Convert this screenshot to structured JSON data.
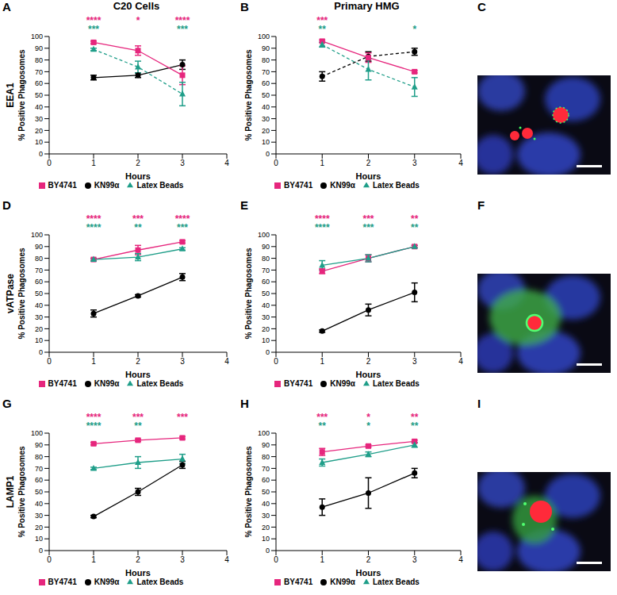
{
  "chart_data": [
    {
      "panel": "A",
      "type": "line",
      "title": "C20 Cells",
      "row_label": "EEA1",
      "ylabel": "% Positive Phagosomes",
      "xlabel": "Hours",
      "x": [
        1,
        2,
        3
      ],
      "xlim": [
        0,
        4
      ],
      "xticks": [
        0,
        1,
        2,
        3,
        4
      ],
      "ylim": [
        0,
        100
      ],
      "yticks": [
        0,
        10,
        20,
        30,
        40,
        50,
        60,
        70,
        80,
        90,
        100
      ],
      "grid": false,
      "legend": "bottom",
      "series": [
        {
          "name": "KN99α",
          "color": "#000000",
          "marker": "circle",
          "line_style": "solid",
          "values": [
            65,
            67,
            76
          ],
          "errors": [
            2,
            2,
            4
          ]
        },
        {
          "name": "BY4741",
          "color": "#e6267d",
          "marker": "square",
          "line_style": "solid",
          "values": [
            95,
            88,
            67
          ],
          "errors": [
            1,
            4,
            8
          ],
          "stars": [
            "****",
            "*",
            "****"
          ]
        },
        {
          "name": "Latex Beads",
          "color": "#1f9e89",
          "marker": "triangle",
          "line_style": "dashed",
          "values": [
            89,
            74,
            51
          ],
          "errors": [
            1,
            5,
            10
          ],
          "stars": [
            "***",
            null,
            "***"
          ]
        }
      ]
    },
    {
      "panel": "B",
      "type": "line",
      "title": "Primary HMG",
      "ylabel": "% Positive Phagosomes",
      "xlabel": "Hours",
      "x": [
        1,
        2,
        3
      ],
      "xlim": [
        0,
        4
      ],
      "xticks": [
        0,
        1,
        2,
        3,
        4
      ],
      "ylim": [
        0,
        100
      ],
      "yticks": [
        0,
        10,
        20,
        30,
        40,
        50,
        60,
        70,
        80,
        90,
        100
      ],
      "grid": false,
      "legend": "bottom",
      "series": [
        {
          "name": "KN99α",
          "color": "#000000",
          "marker": "circle",
          "line_style": "dashed",
          "values": [
            66,
            83,
            87
          ],
          "errors": [
            4,
            4,
            3
          ]
        },
        {
          "name": "BY4741",
          "color": "#e6267d",
          "marker": "square",
          "line_style": "solid",
          "values": [
            96,
            82,
            70
          ],
          "errors": [
            1,
            4,
            1
          ],
          "stars": [
            "***",
            null,
            null
          ]
        },
        {
          "name": "Latex Beads",
          "color": "#1f9e89",
          "marker": "triangle",
          "line_style": "dashed",
          "values": [
            93,
            72,
            57
          ],
          "errors": [
            2,
            9,
            8
          ],
          "stars": [
            "**",
            null,
            "*"
          ]
        }
      ]
    },
    {
      "panel": "D",
      "type": "line",
      "row_label": "vATPase",
      "ylabel": "% Positive Phagosomes",
      "xlabel": "Hours",
      "x": [
        1,
        2,
        3
      ],
      "xlim": [
        0,
        4
      ],
      "xticks": [
        0,
        1,
        2,
        3,
        4
      ],
      "ylim": [
        0,
        100
      ],
      "yticks": [
        0,
        10,
        20,
        30,
        40,
        50,
        60,
        70,
        80,
        90,
        100
      ],
      "grid": false,
      "legend": "bottom",
      "series": [
        {
          "name": "KN99α",
          "color": "#000000",
          "marker": "circle",
          "line_style": "solid",
          "values": [
            33,
            48,
            64
          ],
          "errors": [
            3,
            1,
            3
          ]
        },
        {
          "name": "BY4741",
          "color": "#e6267d",
          "marker": "square",
          "line_style": "solid",
          "values": [
            79,
            87,
            94
          ],
          "errors": [
            1,
            4,
            1
          ],
          "stars": [
            "****",
            "***",
            "****"
          ]
        },
        {
          "name": "Latex Beads",
          "color": "#1f9e89",
          "marker": "triangle",
          "line_style": "solid",
          "values": [
            79,
            81,
            88
          ],
          "errors": [
            1,
            3,
            1
          ],
          "stars": [
            "****",
            "**",
            "***"
          ]
        }
      ]
    },
    {
      "panel": "E",
      "type": "line",
      "ylabel": "% Positive Phagosomes",
      "xlabel": "Hours",
      "x": [
        1,
        2,
        3
      ],
      "xlim": [
        0,
        4
      ],
      "xticks": [
        0,
        1,
        2,
        3,
        4
      ],
      "ylim": [
        0,
        100
      ],
      "yticks": [
        0,
        10,
        20,
        30,
        40,
        50,
        60,
        70,
        80,
        90,
        100
      ],
      "grid": false,
      "legend": "bottom",
      "series": [
        {
          "name": "KN99α",
          "color": "#000000",
          "marker": "circle",
          "line_style": "solid",
          "values": [
            18,
            36,
            51
          ],
          "errors": [
            1,
            5,
            8
          ]
        },
        {
          "name": "BY4741",
          "color": "#e6267d",
          "marker": "square",
          "line_style": "solid",
          "values": [
            69,
            80,
            90
          ],
          "errors": [
            2,
            3,
            1
          ],
          "stars": [
            "****",
            "***",
            "**"
          ]
        },
        {
          "name": "Latex Beads",
          "color": "#1f9e89",
          "marker": "triangle",
          "line_style": "solid",
          "values": [
            74,
            80,
            90
          ],
          "errors": [
            4,
            3,
            1
          ],
          "stars": [
            "****",
            "***",
            "**"
          ]
        }
      ]
    },
    {
      "panel": "G",
      "type": "line",
      "row_label": "LAMP1",
      "ylabel": "% Positive Phagosomes",
      "xlabel": "Hours",
      "x": [
        1,
        2,
        3
      ],
      "xlim": [
        0,
        4
      ],
      "xticks": [
        0,
        1,
        2,
        3,
        4
      ],
      "ylim": [
        0,
        100
      ],
      "yticks": [
        0,
        10,
        20,
        30,
        40,
        50,
        60,
        70,
        80,
        90,
        100
      ],
      "grid": false,
      "legend": "bottom",
      "series": [
        {
          "name": "KN99α",
          "color": "#000000",
          "marker": "circle",
          "line_style": "solid",
          "values": [
            29,
            50,
            73
          ],
          "errors": [
            1,
            3,
            3
          ]
        },
        {
          "name": "BY4741",
          "color": "#e6267d",
          "marker": "square",
          "line_style": "solid",
          "values": [
            91,
            94,
            96
          ],
          "errors": [
            1,
            1,
            1
          ],
          "stars": [
            "****",
            "***",
            "***"
          ]
        },
        {
          "name": "Latex Beads",
          "color": "#1f9e89",
          "marker": "triangle",
          "line_style": "solid",
          "values": [
            70,
            75,
            78
          ],
          "errors": [
            1,
            5,
            4
          ],
          "stars": [
            "****",
            "**",
            null
          ]
        }
      ]
    },
    {
      "panel": "H",
      "type": "line",
      "ylabel": "% Positive Phagosomes",
      "xlabel": "Hours",
      "x": [
        1,
        2,
        3
      ],
      "xlim": [
        0,
        4
      ],
      "xticks": [
        0,
        1,
        2,
        3,
        4
      ],
      "ylim": [
        0,
        100
      ],
      "yticks": [
        0,
        10,
        20,
        30,
        40,
        50,
        60,
        70,
        80,
        90,
        100
      ],
      "grid": false,
      "legend": "bottom",
      "series": [
        {
          "name": "KN99α",
          "color": "#000000",
          "marker": "circle",
          "line_style": "solid",
          "values": [
            37,
            49,
            66
          ],
          "errors": [
            7,
            13,
            4
          ]
        },
        {
          "name": "BY4741",
          "color": "#e6267d",
          "marker": "square",
          "line_style": "solid",
          "values": [
            84,
            89,
            93
          ],
          "errors": [
            3,
            1,
            1
          ],
          "stars": [
            "***",
            "*",
            "**"
          ]
        },
        {
          "name": "Latex Beads",
          "color": "#1f9e89",
          "marker": "triangle",
          "line_style": "solid",
          "values": [
            75,
            82,
            90
          ],
          "errors": [
            3,
            2,
            2
          ],
          "stars": [
            "**",
            "*",
            "**"
          ]
        }
      ]
    }
  ],
  "images": [
    {
      "panel": "C"
    },
    {
      "panel": "F"
    },
    {
      "panel": "I"
    }
  ]
}
